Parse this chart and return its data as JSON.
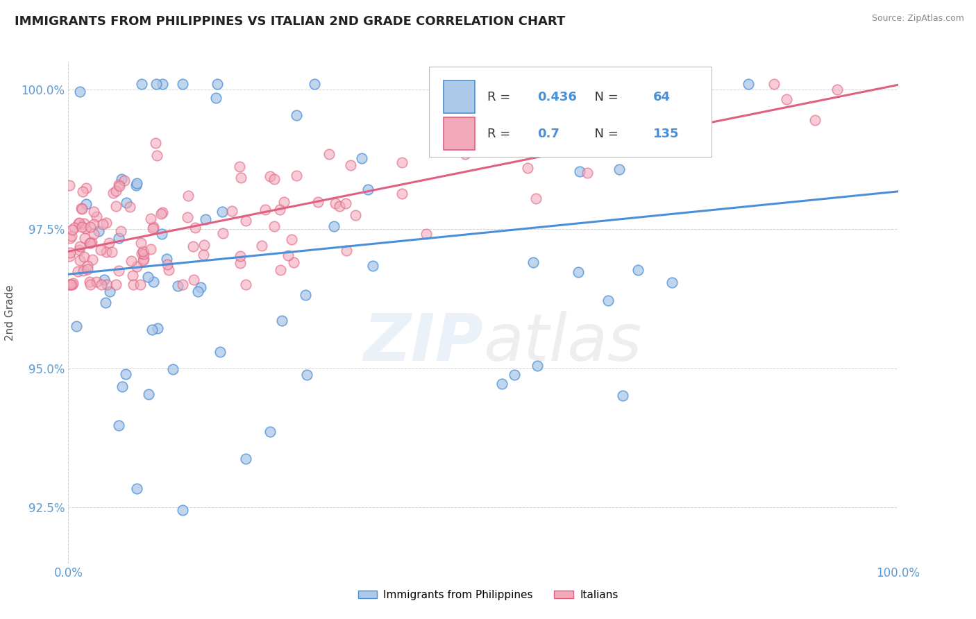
{
  "title": "IMMIGRANTS FROM PHILIPPINES VS ITALIAN 2ND GRADE CORRELATION CHART",
  "source": "Source: ZipAtlas.com",
  "ylabel": "2nd Grade",
  "xlim": [
    0.0,
    1.0
  ],
  "ylim": [
    0.915,
    1.005
  ],
  "yticks": [
    0.925,
    0.95,
    0.975,
    1.0
  ],
  "ytick_labels": [
    "92.5%",
    "95.0%",
    "97.5%",
    "100.0%"
  ],
  "xtick_labels": [
    "0.0%",
    "100.0%"
  ],
  "blue_R": 0.436,
  "blue_N": 64,
  "pink_R": 0.7,
  "pink_N": 135,
  "blue_color": "#adc8e8",
  "pink_color": "#f2aabb",
  "blue_line_color": "#4a90d9",
  "pink_line_color": "#e06080",
  "axis_color": "#5b9bd5",
  "legend_label_blue": "Immigrants from Philippines",
  "legend_label_pink": "Italians",
  "blue_seed": 77,
  "pink_seed": 55
}
